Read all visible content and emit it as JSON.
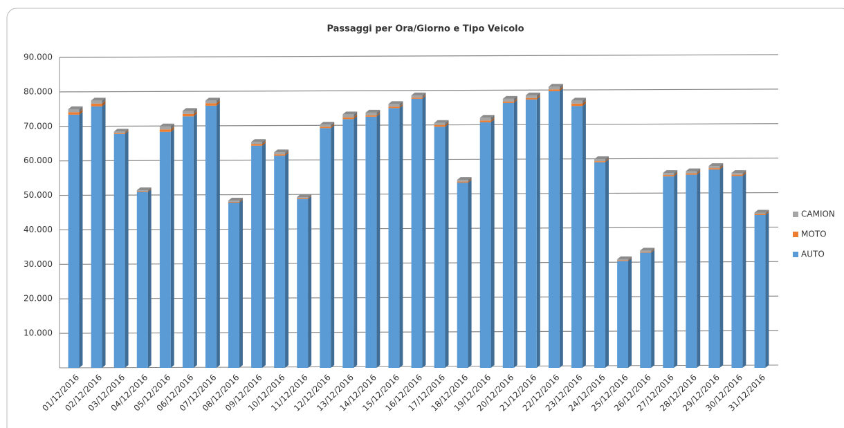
{
  "chart_data": {
    "type": "stacked_bar",
    "title": "Passaggi per Ora/Giorno e Tipo Veicolo",
    "categories": [
      "01/12/2016",
      "02/12/2016",
      "03/12/2016",
      "04/12/2016",
      "05/12/2016",
      "06/12/2016",
      "07/12/2016",
      "08/12/2016",
      "09/12/2016",
      "10/12/2016",
      "11/12/2016",
      "12/12/2016",
      "13/12/2016",
      "14/12/2016",
      "15/12/2016",
      "16/12/2016",
      "17/12/2016",
      "18/12/2016",
      "19/12/2016",
      "20/12/2016",
      "21/12/2016",
      "22/12/2016",
      "23/12/2016",
      "24/12/2016",
      "25/12/2016",
      "26/12/2016",
      "27/12/2016",
      "28/12/2016",
      "29/12/2016",
      "30/12/2016",
      "31/12/2016"
    ],
    "series": [
      {
        "name": "AUTO",
        "color": "#5b9bd5",
        "values": [
          73400,
          75800,
          67800,
          51000,
          68400,
          72900,
          76000,
          47900,
          64400,
          61500,
          48900,
          69500,
          72100,
          72800,
          75300,
          78000,
          69900,
          53700,
          71200,
          76800,
          77800,
          80200,
          75900,
          59600,
          31000,
          33400,
          55500,
          56000,
          57500,
          55600,
          44300
        ]
      },
      {
        "name": "MOTO",
        "color": "#ed7d31",
        "values": [
          700,
          800,
          300,
          200,
          700,
          700,
          700,
          200,
          500,
          400,
          200,
          400,
          500,
          400,
          400,
          300,
          500,
          300,
          500,
          400,
          400,
          500,
          700,
          300,
          200,
          200,
          400,
          400,
          400,
          400,
          300
        ]
      },
      {
        "name": "CAMION",
        "color": "#a5a5a5",
        "values": [
          900,
          900,
          400,
          300,
          900,
          900,
          800,
          400,
          600,
          600,
          400,
          600,
          900,
          800,
          800,
          700,
          600,
          500,
          800,
          800,
          800,
          800,
          900,
          600,
          300,
          400,
          600,
          600,
          600,
          500,
          400
        ]
      }
    ],
    "ylim": [
      0,
      90000
    ],
    "yticks": [
      {
        "value": 10000,
        "label": "10.000"
      },
      {
        "value": 20000,
        "label": "20.000"
      },
      {
        "value": 30000,
        "label": "30.000"
      },
      {
        "value": 40000,
        "label": "40.000"
      },
      {
        "value": 50000,
        "label": "50.000"
      },
      {
        "value": 60000,
        "label": "60.000"
      },
      {
        "value": 70000,
        "label": "70.000"
      },
      {
        "value": 80000,
        "label": "80.000"
      },
      {
        "value": 90000,
        "label": "90.000"
      }
    ],
    "grid": true,
    "legend": "right"
  }
}
